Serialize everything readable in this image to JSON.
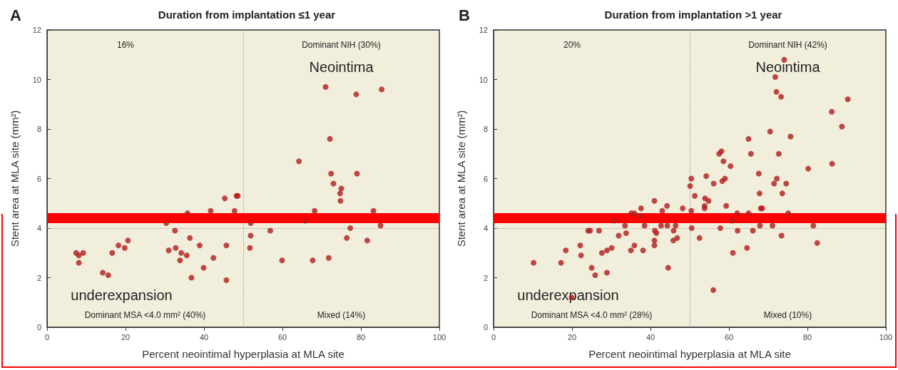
{
  "chart_data": [
    {
      "type": "scatter",
      "title": "Duration from implantation ≤1 year",
      "xlabel": "Percent neointimal hyperplasia at MLA site",
      "ylabel": "Stent area at MLA site (mm²)",
      "annotations": [
        "A",
        "16%",
        "Dominant NIH (30%)",
        "Neointima",
        "underexpansion",
        "Dominant MSA <4.0 mm² (40%)",
        "Mixed (14%)"
      ],
      "xlim": [
        0,
        100
      ],
      "xticks": [
        0,
        20,
        40,
        60,
        80,
        100
      ],
      "ylim": [
        0,
        12
      ],
      "yticks": [
        0,
        2,
        4,
        6,
        8,
        10,
        12
      ],
      "grid": false,
      "marker": "circle",
      "ref_lines": [
        {
          "axis": "x",
          "value": 50,
          "label": null,
          "color": "#999999",
          "line_style": "dotted"
        },
        {
          "axis": "y",
          "value": 4,
          "label": null,
          "color": "#999999",
          "line_style": "dotted"
        },
        {
          "axis": "y",
          "value": 4.4,
          "label": null,
          "color": "#ff0000",
          "line_style": "solid"
        }
      ],
      "series": [
        {
          "color": "#b01c1c",
          "x": [
            7.4,
            8.1,
            8.1,
            9.2,
            14.2,
            15.6,
            16.6,
            18.2,
            19.8,
            20.6,
            30.4,
            31,
            32.6,
            32.8,
            34.2,
            33.9,
            35.6,
            36.4,
            35.8,
            36.8,
            38.9,
            39.9,
            41.7,
            42.4,
            45.3,
            45.7,
            45.7,
            47.8,
            48.3,
            48.6,
            51.9,
            51.9,
            51.7,
            56.9,
            59.9,
            64.2,
            65.8,
            67.7,
            68.2,
            71,
            71.8,
            72.1,
            72.4,
            73,
            74.7,
            75,
            74.8,
            76.4,
            77.3,
            78.8,
            79,
            81.6,
            83.2,
            85,
            85.3
          ],
          "values": [
            3.0,
            2.9,
            2.6,
            3.0,
            2.2,
            2.1,
            3.0,
            3.3,
            3.2,
            3.5,
            4.2,
            3.1,
            3.9,
            3.2,
            3.0,
            2.7,
            2.9,
            3.6,
            4.6,
            2.0,
            3.3,
            2.4,
            4.7,
            2.8,
            5.2,
            3.3,
            1.9,
            4.7,
            5.3,
            5.3,
            4.2,
            3.7,
            3.2,
            3.9,
            2.7,
            6.7,
            4.3,
            2.7,
            4.7,
            9.7,
            2.8,
            7.6,
            6.2,
            5.8,
            5.4,
            5.6,
            5.1,
            3.6,
            4.0,
            9.4,
            6.2,
            3.5,
            4.7,
            4.1,
            9.6
          ]
        }
      ]
    },
    {
      "type": "scatter",
      "title": "Duration from implantation >1 year",
      "xlabel": "Percent neointimal hyperplasia at MLA site",
      "ylabel": "Stent area at MLA site (mm²)",
      "annotations": [
        "B",
        "20%",
        "Dominant NIH (42%)",
        "Neointima",
        "underexpansion",
        "Dominant MSA <4.0 mm² (28%)",
        "Mixed (10%)"
      ],
      "xlim": [
        0,
        100
      ],
      "xticks": [
        0,
        20,
        40,
        60,
        80,
        100
      ],
      "ylim": [
        0,
        12
      ],
      "yticks": [
        0,
        2,
        4,
        6,
        8,
        10,
        12
      ],
      "grid": false,
      "marker": "circle",
      "ref_lines": [
        {
          "axis": "x",
          "value": 50,
          "label": null,
          "color": "#999999",
          "line_style": "dotted"
        },
        {
          "axis": "y",
          "value": 4,
          "label": null,
          "color": "#999999",
          "line_style": "dotted"
        },
        {
          "axis": "y",
          "value": 4.4,
          "label": null,
          "color": "#ff0000",
          "line_style": "solid"
        }
      ],
      "series": [
        {
          "color": "#b01c1c",
          "x": [
            10.2,
            17.2,
            18.4,
            19.9,
            22.1,
            22.3,
            24.1,
            24.6,
            25,
            25.9,
            26.9,
            27.6,
            28.9,
            28.9,
            30.1,
            30.7,
            31.9,
            33.5,
            33.8,
            35,
            35.9,
            35.1,
            35.9,
            37.3,
            37.6,
            38.1,
            38.5,
            41,
            41.1,
            41.5,
            41,
            41,
            42.7,
            43,
            44.2,
            44.5,
            44.3,
            45.9,
            45.8,
            46.8,
            46.4,
            48.2,
            50.4,
            50.1,
            51.3,
            50.4,
            50.5,
            54.2,
            56.1,
            53.9,
            54.8,
            53.8,
            53.8,
            52.5,
            56,
            57.5,
            58.1,
            58.6,
            60.4,
            58.3,
            59,
            59.3,
            57.8,
            60.9,
            62.1,
            61,
            62.2,
            64.6,
            65,
            65.6,
            65,
            66.1,
            67.6,
            67.8,
            68.1,
            68.5,
            67.9,
            70.5,
            71.8,
            72.1,
            73.3,
            74.1,
            72.7,
            72.2,
            71.5,
            74.6,
            73.6,
            71.1,
            75.1,
            73.4,
            75.7,
            80.2,
            81.5,
            82.5,
            86.2,
            86.3,
            88.8,
            90.3
          ],
          "values": [
            2.6,
            2.6,
            3.1,
            1.2,
            3.3,
            2.9,
            3.9,
            3.9,
            2.4,
            2.1,
            3.9,
            3.0,
            2.2,
            3.1,
            3.2,
            4.3,
            3.7,
            4.1,
            3.8,
            3.1,
            3.3,
            4.6,
            4.6,
            4.5,
            4.8,
            3.1,
            4.1,
            5.1,
            3.9,
            3.8,
            3.5,
            3.3,
            4.1,
            4.7,
            4.9,
            2.4,
            4.1,
            3.9,
            3.5,
            3.6,
            4.1,
            4.8,
            6.0,
            5.7,
            5.3,
            4.7,
            4.0,
            6.1,
            5.8,
            5.2,
            5.1,
            4.9,
            4.8,
            3.6,
            1.5,
            7.0,
            7.1,
            6.7,
            6.5,
            5.9,
            6.0,
            4.9,
            4.0,
            4.3,
            4.6,
            3.0,
            3.9,
            3.2,
            7.6,
            7.0,
            4.6,
            3.9,
            6.2,
            5.4,
            4.8,
            4.8,
            4.1,
            7.9,
            10.1,
            9.5,
            9.3,
            10.8,
            7.0,
            6.0,
            5.8,
            5.8,
            5.4,
            4.1,
            4.6,
            3.7,
            7.7,
            6.4,
            4.1,
            3.4,
            8.7,
            6.6,
            8.1,
            9.2
          ]
        }
      ]
    }
  ]
}
